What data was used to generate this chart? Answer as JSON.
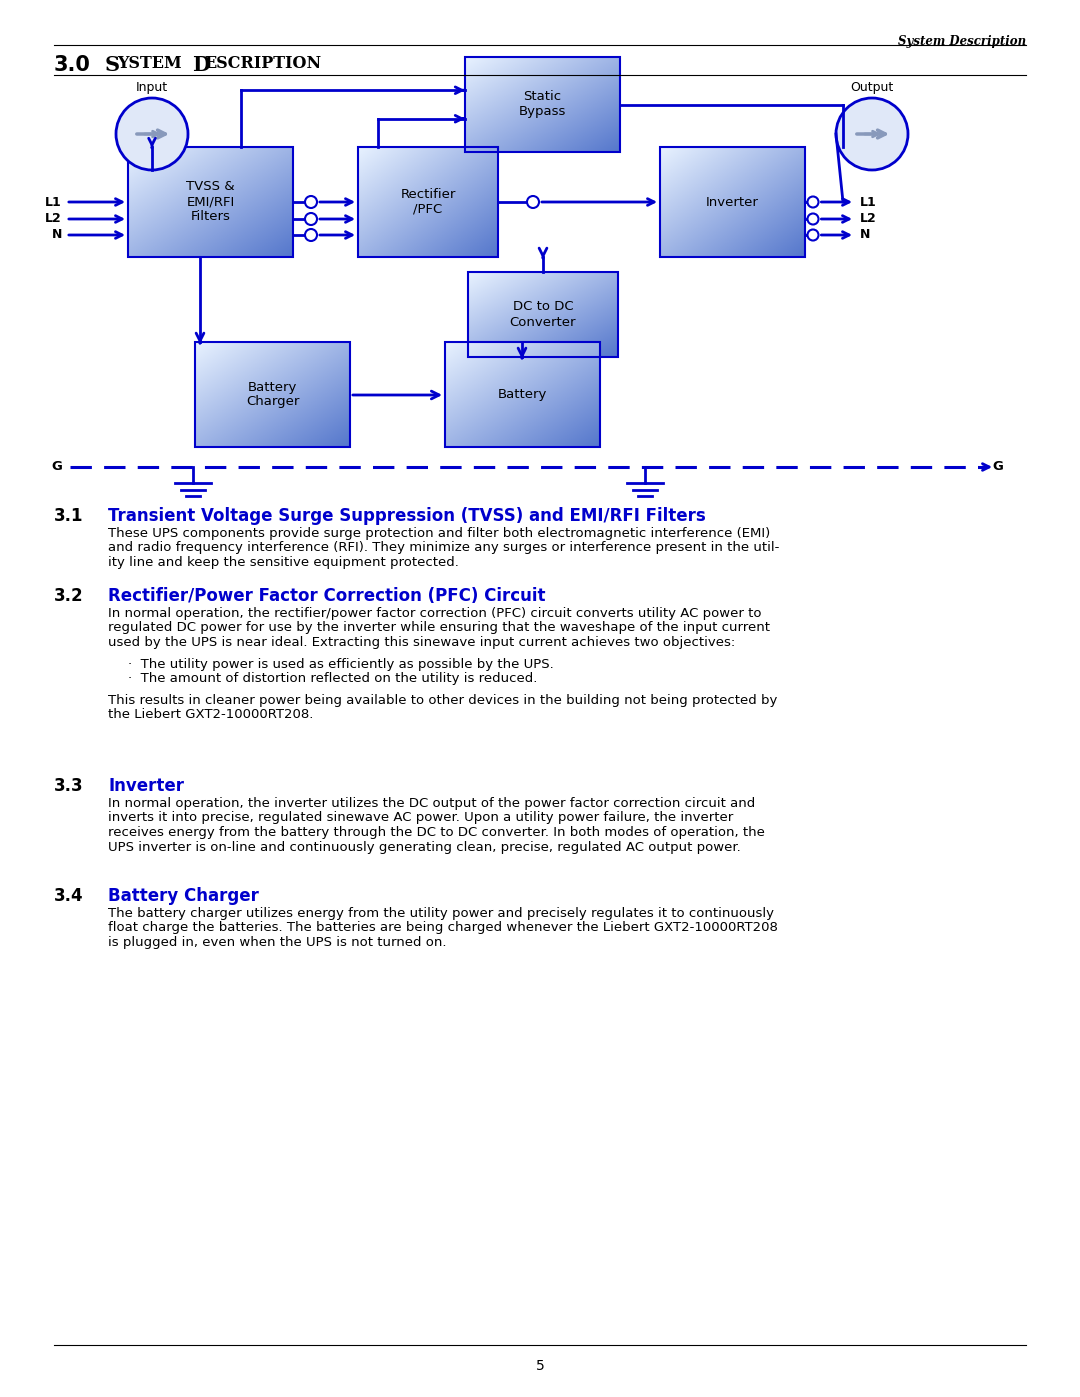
{
  "bg_color": "#ffffff",
  "blue": "#0000cc",
  "header_text": "System Description",
  "title_num": "3.0",
  "title_text": "System Description",
  "sections": [
    {
      "num": "3.1",
      "heading": "Transient Voltage Surge Suppression (TVSS) and EMI/RFI Filters",
      "body_lines": [
        "These UPS components provide surge protection and filter both electromagnetic interference (EMI)",
        "and radio frequency interference (RFI). They minimize any surges or interference present in the util-",
        "ity line and keep the sensitive equipment protected."
      ]
    },
    {
      "num": "3.2",
      "heading": "Rectifier/Power Factor Correction (PFC) Circuit",
      "body_lines": [
        "In normal operation, the rectifier/power factor correction (PFC) circuit converts utility AC power to",
        "regulated DC power for use by the inverter while ensuring that the waveshape of the input current",
        "used by the UPS is near ideal. Extracting this sinewave input current achieves two objectives:",
        "",
        "·  The utility power is used as efficiently as possible by the UPS.",
        "·  The amount of distortion reflected on the utility is reduced.",
        "",
        "This results in cleaner power being available to other devices in the building not being protected by",
        "the Liebert GXT2-10000RT208."
      ]
    },
    {
      "num": "3.3",
      "heading": "Inverter",
      "body_lines": [
        "In normal operation, the inverter utilizes the DC output of the power factor correction circuit and",
        "inverts it into precise, regulated sinewave AC power. Upon a utility power failure, the inverter",
        "receives energy from the battery through the DC to DC converter. In both modes of operation, the",
        "UPS inverter is on-line and continuously generating clean, precise, regulated AC output power."
      ]
    },
    {
      "num": "3.4",
      "heading": "Battery Charger",
      "body_lines": [
        "The battery charger utilizes energy from the utility power and precisely regulates it to continuously",
        "float charge the batteries. The batteries are being charged whenever the Liebert GXT2-10000RT208",
        "is plugged in, even when the UPS is not turned on."
      ]
    }
  ],
  "page_num": "5"
}
